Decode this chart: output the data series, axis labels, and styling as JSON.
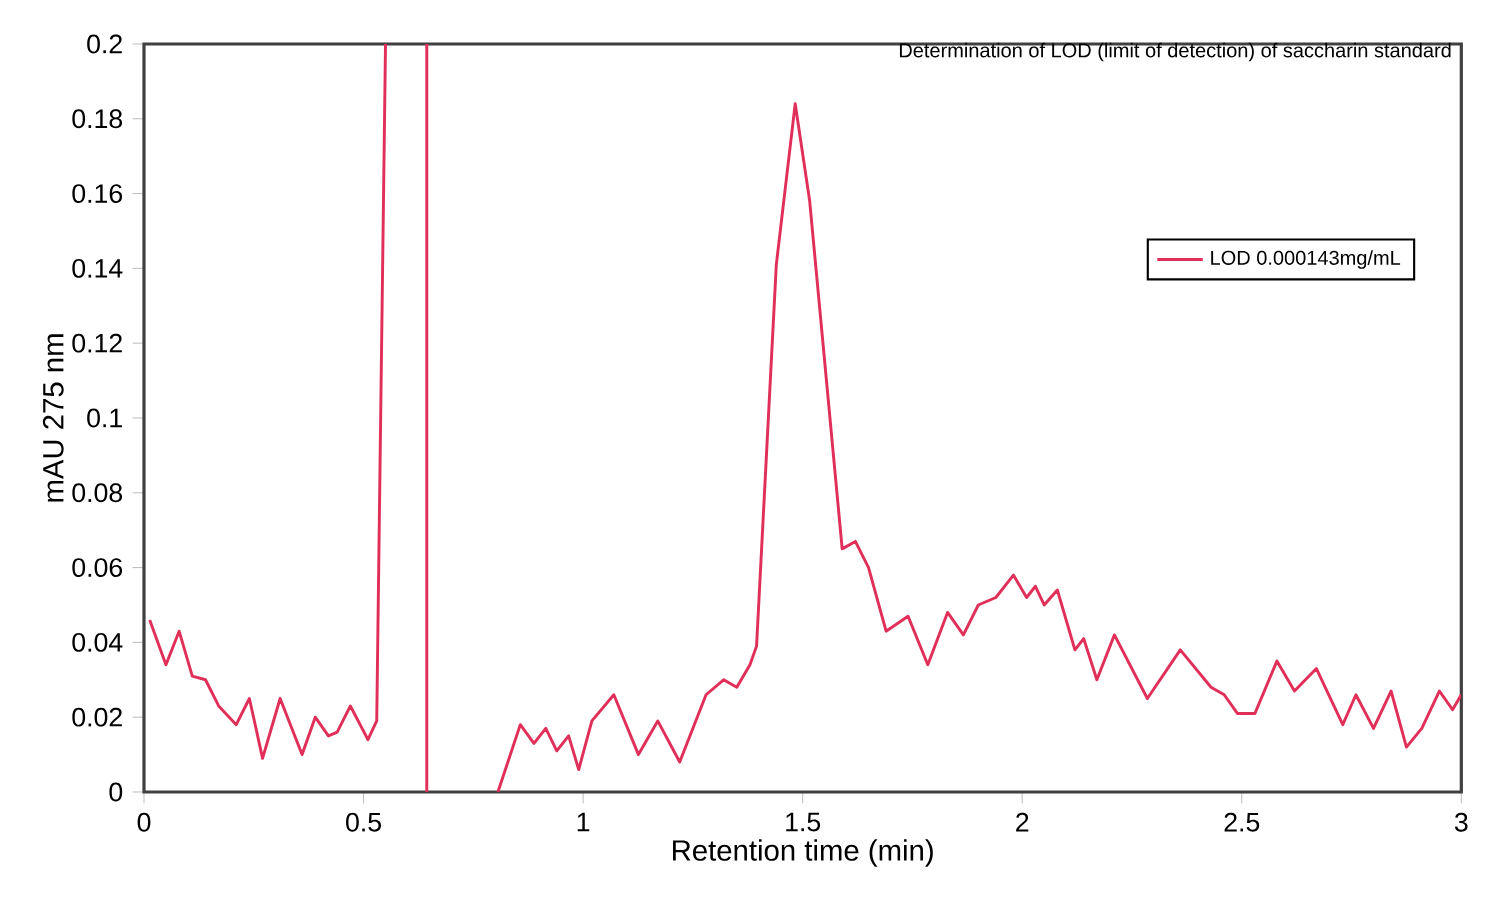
{
  "chart_data": {
    "type": "line",
    "title": "Determination of LOD (limit of detection) of saccharin standard",
    "xlabel": "Retention time (min)",
    "ylabel": "mAU 275 nm",
    "xlim": [
      0,
      3
    ],
    "ylim": [
      0,
      0.2
    ],
    "xticks": [
      0,
      0.5,
      1,
      1.5,
      2,
      2.5,
      3
    ],
    "yticks": [
      0,
      0.02,
      0.04,
      0.06,
      0.08,
      0.1,
      0.12,
      0.14,
      0.16,
      0.18,
      0.2
    ],
    "grid": false,
    "legend": "top right",
    "marker": "none",
    "line_style": "solid",
    "series": [
      {
        "name": "LOD 0.000143mg/mL",
        "color": "#e0305a",
        "x": [
          0.013,
          0.05,
          0.08,
          0.11,
          0.14,
          0.17,
          0.21,
          0.24,
          0.27,
          0.31,
          0.36,
          0.39,
          0.42,
          0.44,
          0.47,
          0.51,
          0.53,
          0.55,
          0.6,
          0.644,
          0.644,
          0.72,
          0.806,
          0.857,
          0.888,
          0.915,
          0.94,
          0.967,
          0.99,
          1.02,
          1.07,
          1.126,
          1.17,
          1.22,
          1.28,
          1.32,
          1.35,
          1.38,
          1.395,
          1.44,
          1.483,
          1.516,
          1.59,
          1.62,
          1.65,
          1.69,
          1.74,
          1.785,
          1.83,
          1.866,
          1.9,
          1.94,
          1.98,
          2.01,
          2.03,
          2.05,
          2.08,
          2.12,
          2.14,
          2.17,
          2.21,
          2.285,
          2.36,
          2.43,
          2.46,
          2.49,
          2.53,
          2.58,
          2.62,
          2.67,
          2.73,
          2.76,
          2.8,
          2.84,
          2.875,
          2.91,
          2.95,
          2.98,
          3.0
        ],
        "values": [
          0.046,
          0.034,
          0.043,
          0.031,
          0.03,
          0.023,
          0.018,
          0.025,
          0.009,
          0.025,
          0.01,
          0.02,
          0.015,
          0.016,
          0.023,
          0.014,
          0.019,
          0.2,
          null,
          0.2,
          0,
          null,
          0,
          0.018,
          0.013,
          0.017,
          0.011,
          0.015,
          0.006,
          0.019,
          0.026,
          0.01,
          0.019,
          0.008,
          0.026,
          0.03,
          0.028,
          0.034,
          0.039,
          0.141,
          0.184,
          0.158,
          0.065,
          0.067,
          0.06,
          0.043,
          0.047,
          0.034,
          0.048,
          0.042,
          0.05,
          0.052,
          0.058,
          0.052,
          0.055,
          0.05,
          0.054,
          0.038,
          0.041,
          0.03,
          0.042,
          0.025,
          0.038,
          0.028,
          0.026,
          0.021,
          0.021,
          0.035,
          0.027,
          0.033,
          0.018,
          0.026,
          0.017,
          0.027,
          0.012,
          0.017,
          0.027,
          0.022,
          0.026
        ]
      }
    ]
  }
}
